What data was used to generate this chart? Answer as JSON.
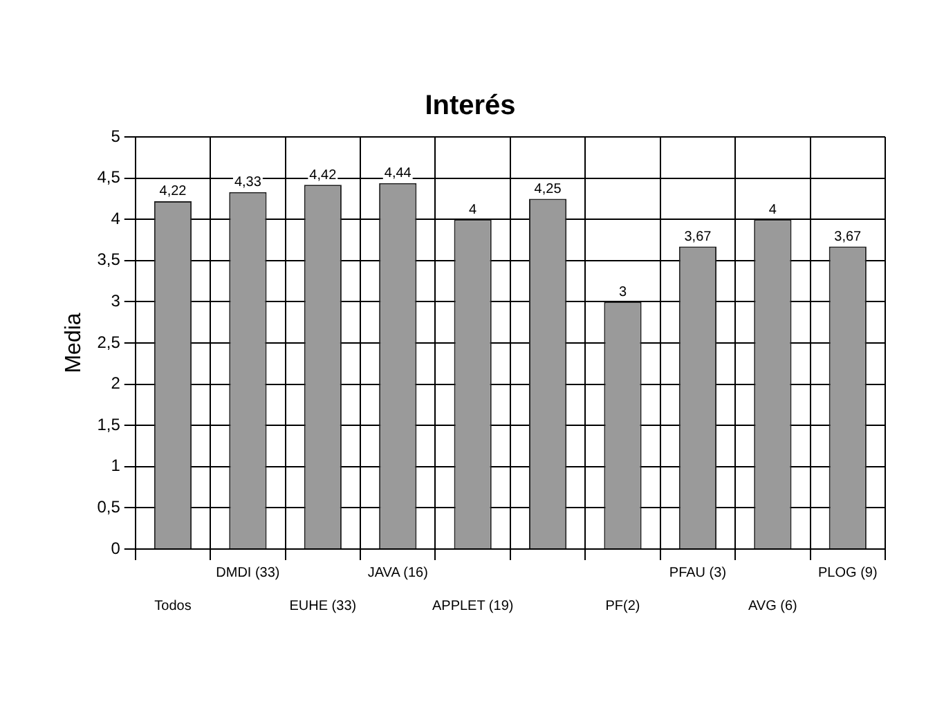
{
  "chart_data": {
    "type": "bar",
    "title": "Interés",
    "ylabel": "Media",
    "categories": [
      "Todos",
      "DMDI (33)",
      "EUHE (33)",
      "JAVA (16)",
      "APPLET (19)",
      null,
      "PF(2)",
      "PFAU (3)",
      "AVG (6)",
      "PLOG (9)"
    ],
    "values": [
      4.22,
      4.33,
      4.42,
      4.44,
      4,
      4.25,
      3,
      3.67,
      4,
      3.67
    ],
    "value_labels": [
      "4,22",
      "4,33",
      "4,42",
      "4,44",
      "4",
      "4,25",
      "3",
      "3,67",
      "4",
      "3,67"
    ],
    "color": "#9a9a9a",
    "ylim": [
      0,
      5
    ],
    "yticks": [
      0,
      {
        "value": 0.5,
        "label": "0,5"
      },
      1,
      {
        "value": 1.5,
        "label": "1,5"
      },
      2,
      {
        "value": 2.5,
        "label": "2,5"
      },
      3,
      {
        "value": 3.5,
        "label": "3,5"
      },
      4,
      {
        "value": 4.5,
        "label": "4,5"
      },
      5
    ],
    "grid": true,
    "legend": false
  }
}
